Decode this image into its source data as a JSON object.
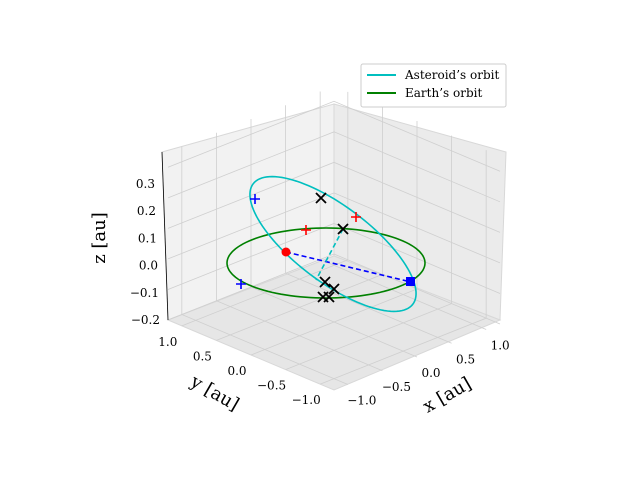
{
  "chart_data": {
    "type": "3d-line",
    "title": "",
    "xlabel": "$x$ [au]",
    "ylabel": "$y$ [au]",
    "zlabel": "$z$ [au]",
    "x_ticks": [
      "−1.0",
      "−0.5",
      "0.0",
      "0.5",
      "1.0"
    ],
    "y_ticks": [
      "−1.0",
      "−0.5",
      "0.0",
      "0.5",
      "1.0"
    ],
    "z_ticks": [
      "−0.2",
      "−0.1",
      "0.0",
      "0.1",
      "0.2",
      "0.3"
    ],
    "xlim": [
      -1.2,
      1.2
    ],
    "ylim": [
      -1.2,
      1.2
    ],
    "zlim": [
      -0.2,
      0.35
    ],
    "grid": true,
    "legend_position": "top-right",
    "series": [
      {
        "name": "Asteroid’s orbit",
        "color": "#00bfbf",
        "kind": "ellipse",
        "a": 1.1,
        "e": 0.45,
        "inclination_deg": 10,
        "omega_deg": 200
      },
      {
        "name": "Earth’s orbit",
        "color": "#008000",
        "kind": "circle",
        "a": 1.0
      }
    ],
    "colors": {
      "sun": "#ff0000",
      "earth": "#0000ff",
      "asteroid_marker": "#000000",
      "asteroid_dash": "#00bfbf",
      "earth_dash": "#0000ff"
    }
  },
  "legend": {
    "items": [
      {
        "label": "Asteroid’s orbit",
        "color": "#00bfbf"
      },
      {
        "label": "Earth’s orbit",
        "color": "#008000"
      }
    ]
  },
  "axis_labels": {
    "x": "x [au]",
    "y": "y [au]",
    "z": "z [au]"
  }
}
